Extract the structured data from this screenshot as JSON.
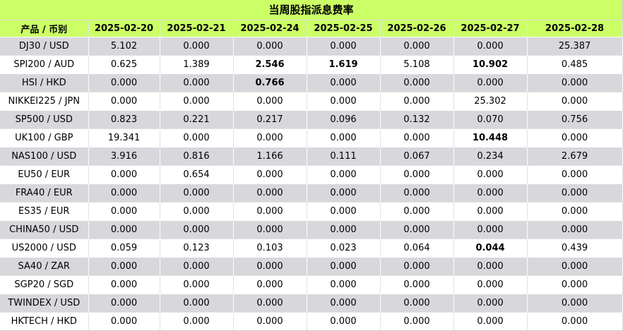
{
  "title": "当周股指派息费率",
  "headers": [
    "产品 / 币别",
    "2025-02-20",
    "2025-02-21",
    "2025-02-24",
    "2025-02-25",
    "2025-02-26",
    "2025-02-27",
    "2025-02-28"
  ],
  "rows": [
    {
      "product": "DJ30 / USD",
      "values": [
        "5.102",
        "0.000",
        "0.000",
        "0.000",
        "0.000",
        "0.000",
        "25.387"
      ],
      "bold": []
    },
    {
      "product": "SPI200 / AUD",
      "values": [
        "0.625",
        "1.389",
        "2.546",
        "1.619",
        "5.108",
        "10.902",
        "0.485"
      ],
      "bold": [
        2,
        3,
        5
      ]
    },
    {
      "product": "HSI / HKD",
      "values": [
        "0.000",
        "0.000",
        "0.766",
        "0.000",
        "0.000",
        "0.000",
        "0.000"
      ],
      "bold": [
        2
      ]
    },
    {
      "product": "NIKKEI225 / JPN",
      "values": [
        "0.000",
        "0.000",
        "0.000",
        "0.000",
        "0.000",
        "25.302",
        "0.000"
      ],
      "bold": []
    },
    {
      "product": "SP500 / USD",
      "values": [
        "0.823",
        "0.221",
        "0.217",
        "0.096",
        "0.132",
        "0.070",
        "0.756"
      ],
      "bold": []
    },
    {
      "product": "UK100 / GBP",
      "values": [
        "19.341",
        "0.000",
        "0.000",
        "0.000",
        "0.000",
        "10.448",
        "0.000"
      ],
      "bold": [
        5
      ]
    },
    {
      "product": "NAS100 / USD",
      "values": [
        "3.916",
        "0.816",
        "1.166",
        "0.111",
        "0.067",
        "0.234",
        "2.679"
      ],
      "bold": []
    },
    {
      "product": "EU50 / EUR",
      "values": [
        "0.000",
        "0.654",
        "0.000",
        "0.000",
        "0.000",
        "0.000",
        "0.000"
      ],
      "bold": []
    },
    {
      "product": "FRA40 / EUR",
      "values": [
        "0.000",
        "0.000",
        "0.000",
        "0.000",
        "0.000",
        "0.000",
        "0.000"
      ],
      "bold": []
    },
    {
      "product": "ES35 / EUR",
      "values": [
        "0.000",
        "0.000",
        "0.000",
        "0.000",
        "0.000",
        "0.000",
        "0.000"
      ],
      "bold": []
    },
    {
      "product": "CHINA50 / USD",
      "values": [
        "0.000",
        "0.000",
        "0.000",
        "0.000",
        "0.000",
        "0.000",
        "0.000"
      ],
      "bold": []
    },
    {
      "product": "US2000 / USD",
      "values": [
        "0.059",
        "0.123",
        "0.103",
        "0.023",
        "0.064",
        "0.044",
        "0.439"
      ],
      "bold": [
        5
      ]
    },
    {
      "product": "SA40 / ZAR",
      "values": [
        "0.000",
        "0.000",
        "0.000",
        "0.000",
        "0.000",
        "0.000",
        "0.000"
      ],
      "bold": []
    },
    {
      "product": "SGP20 / SGD",
      "values": [
        "0.000",
        "0.000",
        "0.000",
        "0.000",
        "0.000",
        "0.000",
        "0.000"
      ],
      "bold": []
    },
    {
      "product": "TWINDEX / USD",
      "values": [
        "0.000",
        "0.000",
        "0.000",
        "0.000",
        "0.000",
        "0.000",
        "0.000"
      ],
      "bold": []
    },
    {
      "product": "HKTECH / HKD",
      "values": [
        "0.000",
        "0.000",
        "0.000",
        "0.000",
        "0.000",
        "0.000",
        "0.000"
      ],
      "bold": []
    }
  ],
  "colors": {
    "header_bg": "#ccff66",
    "row_odd_bg": "#d7d7dc",
    "row_even_bg": "#ffffff"
  }
}
